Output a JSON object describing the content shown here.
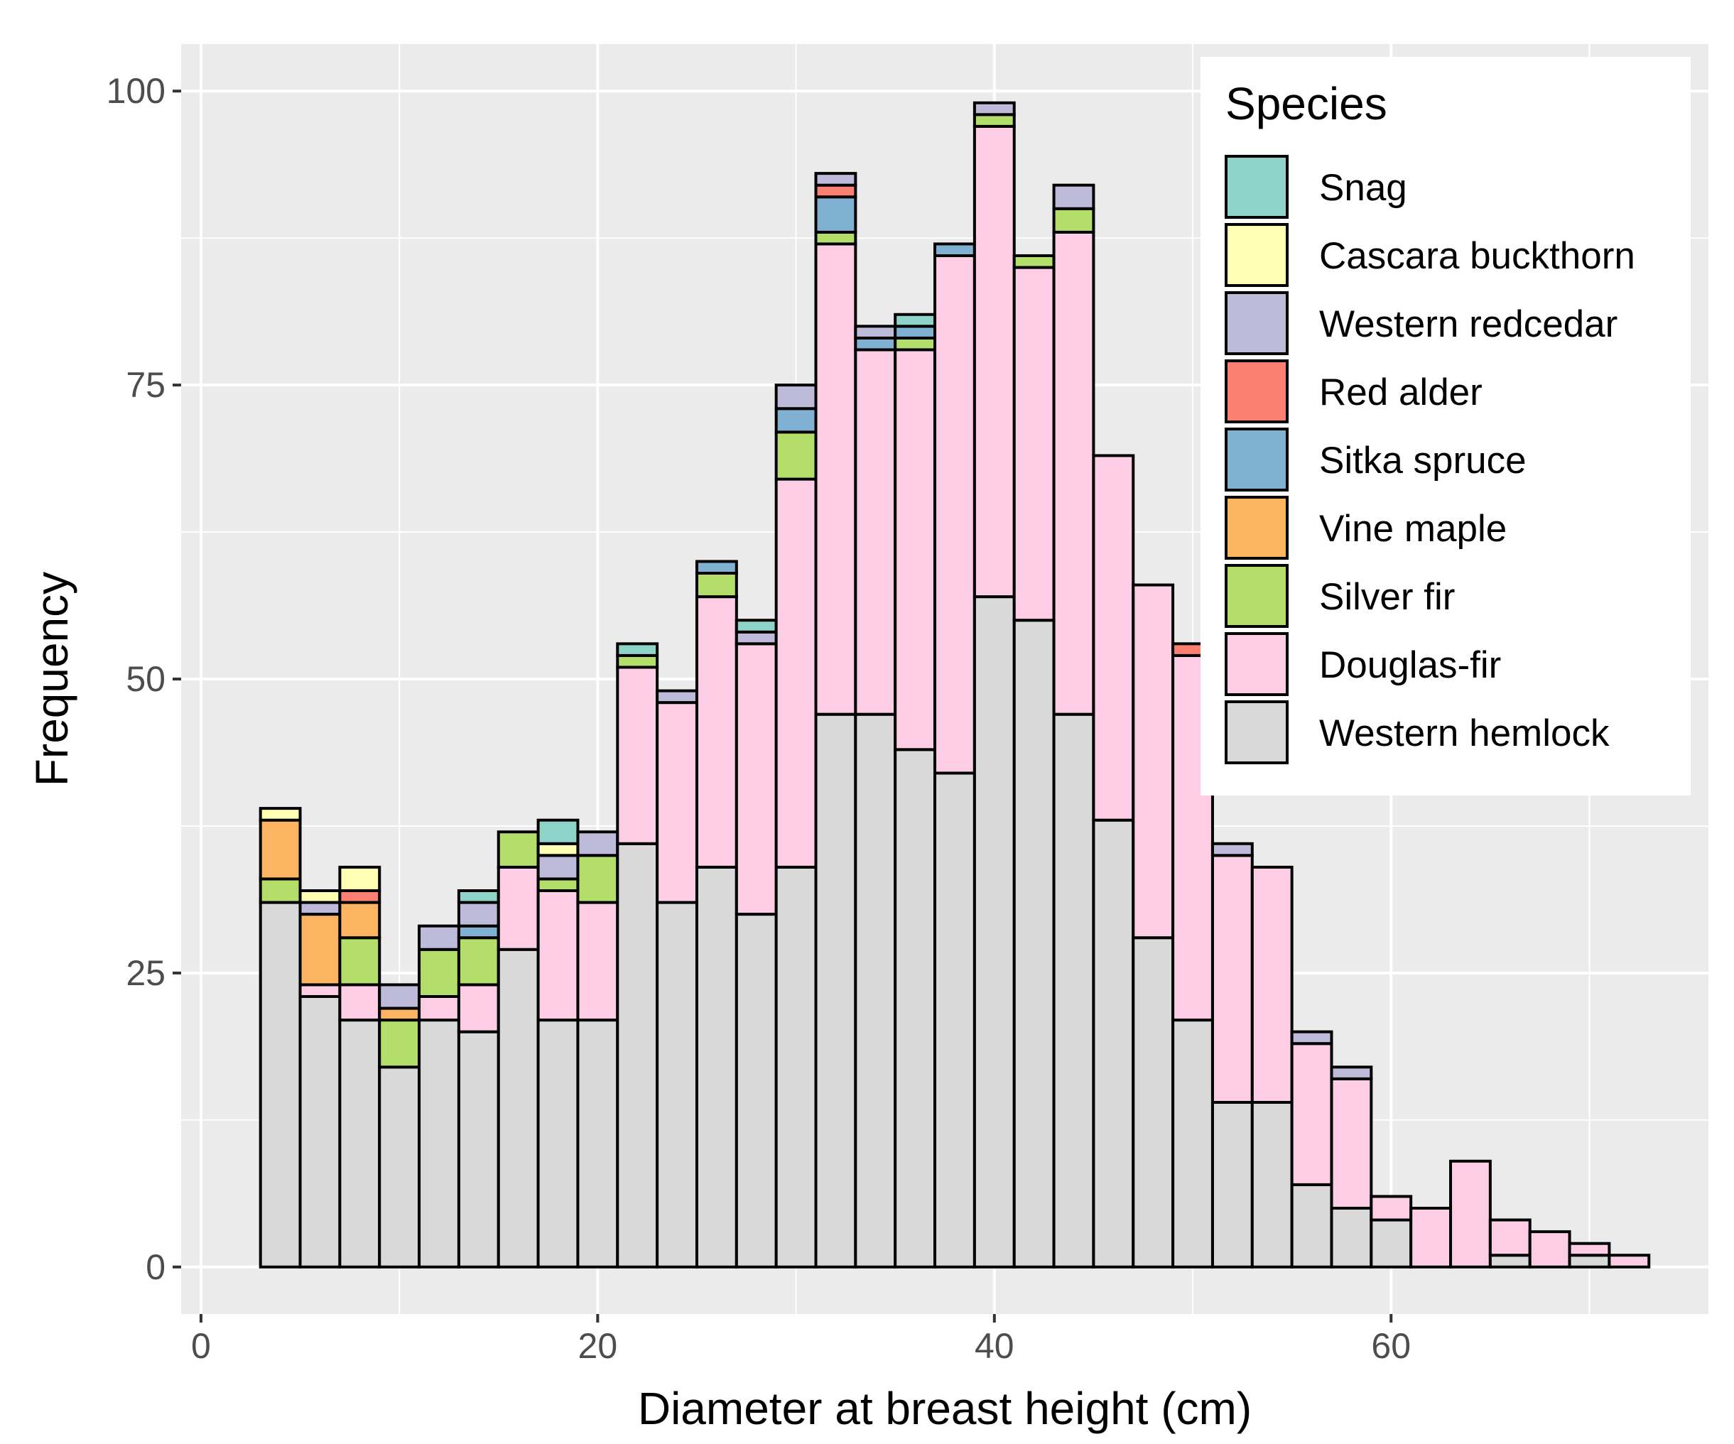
{
  "chart_data": {
    "type": "bar",
    "stacked": true,
    "title": "",
    "xlabel": "Diameter at breast height (cm)",
    "ylabel": "Frequency",
    "xlim": [
      -1,
      76
    ],
    "ylim": [
      -4,
      104
    ],
    "x_ticks": [
      0,
      20,
      40,
      60
    ],
    "y_ticks": [
      0,
      25,
      50,
      75,
      100
    ],
    "grid": true,
    "bin_width": 2,
    "bin_centers": [
      4,
      6,
      8,
      10,
      12,
      14,
      16,
      18,
      20,
      22,
      24,
      26,
      28,
      30,
      32,
      34,
      36,
      38,
      40,
      42,
      44,
      46,
      48,
      50,
      52,
      54,
      56,
      58,
      60,
      62,
      64,
      66,
      68,
      70,
      72
    ],
    "legend": {
      "title": "Species",
      "position": "top-right"
    },
    "series": [
      {
        "name": "Western hemlock",
        "color": "#d9d9d9",
        "values": [
          31,
          23,
          21,
          17,
          21,
          20,
          27,
          21,
          21,
          36,
          31,
          34,
          30,
          34,
          47,
          47,
          44,
          42,
          57,
          55,
          47,
          38,
          28,
          21,
          14,
          14,
          7,
          5,
          4,
          0,
          0,
          1,
          0,
          1,
          0
        ]
      },
      {
        "name": "Douglas-fir",
        "color": "#fccde5",
        "values": [
          0,
          1,
          3,
          0,
          2,
          4,
          7,
          11,
          10,
          15,
          17,
          23,
          23,
          33,
          40,
          31,
          34,
          44,
          40,
          30,
          41,
          31,
          30,
          31,
          21,
          20,
          12,
          11,
          2,
          5,
          9,
          3,
          3,
          1,
          1
        ]
      },
      {
        "name": "Silver fir",
        "color": "#b3de69",
        "values": [
          2,
          0,
          4,
          4,
          4,
          4,
          3,
          1,
          4,
          1,
          0,
          2,
          0,
          4,
          1,
          0,
          1,
          0,
          1,
          1,
          2,
          0,
          0,
          0,
          0,
          0,
          0,
          0,
          0,
          0,
          0,
          0,
          0,
          0,
          0
        ]
      },
      {
        "name": "Vine maple",
        "color": "#fdb462",
        "values": [
          5,
          6,
          3,
          1,
          0,
          0,
          0,
          0,
          0,
          0,
          0,
          0,
          0,
          0,
          0,
          0,
          0,
          0,
          0,
          0,
          0,
          0,
          0,
          0,
          0,
          0,
          0,
          0,
          0,
          0,
          0,
          0,
          0,
          0,
          0
        ]
      },
      {
        "name": "Sitka spruce",
        "color": "#80b1d3",
        "values": [
          0,
          0,
          0,
          0,
          0,
          1,
          0,
          0,
          0,
          0,
          0,
          1,
          0,
          2,
          3,
          1,
          1,
          1,
          0,
          0,
          0,
          0,
          0,
          0,
          0,
          0,
          0,
          0,
          0,
          0,
          0,
          0,
          0,
          0,
          0
        ]
      },
      {
        "name": "Red alder",
        "color": "#fb8072",
        "values": [
          0,
          0,
          1,
          0,
          0,
          0,
          0,
          0,
          0,
          0,
          0,
          0,
          0,
          0,
          1,
          0,
          0,
          0,
          0,
          0,
          0,
          0,
          0,
          1,
          0,
          0,
          0,
          0,
          0,
          0,
          0,
          0,
          0,
          0,
          0
        ]
      },
      {
        "name": "Western redcedar",
        "color": "#bebada",
        "values": [
          0,
          1,
          0,
          2,
          2,
          2,
          0,
          2,
          2,
          0,
          1,
          0,
          1,
          2,
          1,
          1,
          0,
          0,
          1,
          0,
          2,
          0,
          0,
          0,
          1,
          0,
          1,
          1,
          0,
          0,
          0,
          0,
          0,
          0,
          0
        ]
      },
      {
        "name": "Cascara buckthorn",
        "color": "#ffffb3",
        "values": [
          1,
          1,
          2,
          0,
          0,
          0,
          0,
          1,
          0,
          0,
          0,
          0,
          0,
          0,
          0,
          0,
          0,
          0,
          0,
          0,
          0,
          0,
          0,
          0,
          0,
          0,
          0,
          0,
          0,
          0,
          0,
          0,
          0,
          0,
          0
        ]
      },
      {
        "name": "Snag",
        "color": "#8dd3c7",
        "values": [
          0,
          0,
          0,
          0,
          0,
          1,
          0,
          2,
          0,
          1,
          0,
          0,
          1,
          0,
          0,
          0,
          1,
          0,
          0,
          0,
          0,
          0,
          0,
          0,
          0,
          0,
          0,
          0,
          0,
          0,
          0,
          0,
          0,
          0,
          0
        ]
      }
    ]
  },
  "legend_items": [
    {
      "label": "Snag",
      "color": "#8dd3c7"
    },
    {
      "label": "Cascara buckthorn",
      "color": "#ffffb3"
    },
    {
      "label": "Western redcedar",
      "color": "#bebada"
    },
    {
      "label": "Red alder",
      "color": "#fb8072"
    },
    {
      "label": "Sitka spruce",
      "color": "#80b1d3"
    },
    {
      "label": "Vine maple",
      "color": "#fdb462"
    },
    {
      "label": "Silver fir",
      "color": "#b3de69"
    },
    {
      "label": "Douglas-fir",
      "color": "#fccde5"
    },
    {
      "label": "Western hemlock",
      "color": "#d9d9d9"
    }
  ],
  "colors": {
    "panel_background": "#ebebeb",
    "grid": "#ffffff",
    "bar_outline": "#000000"
  }
}
